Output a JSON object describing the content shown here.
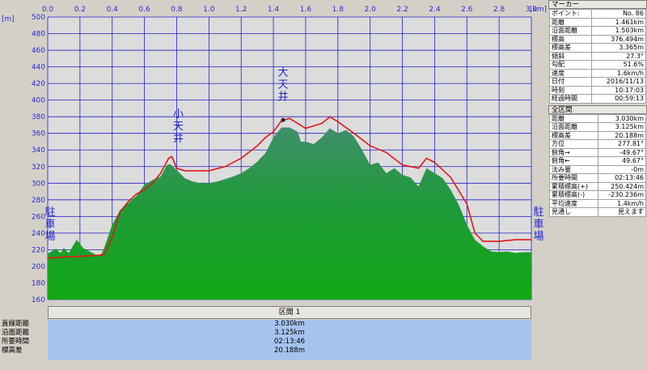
{
  "chart_data": {
    "type": "area",
    "x_unit": "[km]",
    "y_unit": "[m]",
    "xlim": [
      0,
      3.0
    ],
    "ylim": [
      160,
      500
    ],
    "x_ticks": [
      "0.0",
      "0.2",
      "0.4",
      "0.6",
      "0.8",
      "1.0",
      "1.2",
      "1.4",
      "1.6",
      "1.8",
      "2.0",
      "2.2",
      "2.4",
      "2.6",
      "2.8",
      "3.0"
    ],
    "y_ticks": [
      "160",
      "180",
      "200",
      "220",
      "240",
      "260",
      "280",
      "300",
      "320",
      "340",
      "360",
      "380",
      "400",
      "420",
      "440",
      "460",
      "480",
      "500"
    ],
    "grid": true,
    "series": [
      {
        "kind": "elevation-fill",
        "color": "#0f9a1a",
        "points": [
          [
            0,
            215
          ],
          [
            0.05,
            221
          ],
          [
            0.08,
            216
          ],
          [
            0.1,
            222
          ],
          [
            0.13,
            216
          ],
          [
            0.18,
            232
          ],
          [
            0.22,
            222
          ],
          [
            0.26,
            218
          ],
          [
            0.3,
            214
          ],
          [
            0.33,
            214
          ],
          [
            0.35,
            222
          ],
          [
            0.4,
            250
          ],
          [
            0.45,
            268
          ],
          [
            0.5,
            276
          ],
          [
            0.55,
            285
          ],
          [
            0.6,
            298
          ],
          [
            0.65,
            304
          ],
          [
            0.7,
            308
          ],
          [
            0.72,
            315
          ],
          [
            0.74,
            322
          ],
          [
            0.76,
            323
          ],
          [
            0.8,
            316
          ],
          [
            0.85,
            306
          ],
          [
            0.9,
            302
          ],
          [
            0.95,
            300
          ],
          [
            1.0,
            300
          ],
          [
            1.05,
            302
          ],
          [
            1.1,
            305
          ],
          [
            1.15,
            308
          ],
          [
            1.2,
            312
          ],
          [
            1.25,
            318
          ],
          [
            1.3,
            326
          ],
          [
            1.35,
            336
          ],
          [
            1.4,
            355
          ],
          [
            1.42,
            360
          ],
          [
            1.45,
            367
          ],
          [
            1.5,
            367
          ],
          [
            1.55,
            362
          ],
          [
            1.57,
            350
          ],
          [
            1.6,
            350
          ],
          [
            1.65,
            347
          ],
          [
            1.7,
            355
          ],
          [
            1.75,
            366
          ],
          [
            1.8,
            360
          ],
          [
            1.85,
            364
          ],
          [
            1.9,
            356
          ],
          [
            1.95,
            340
          ],
          [
            2.0,
            322
          ],
          [
            2.05,
            325
          ],
          [
            2.1,
            312
          ],
          [
            2.15,
            318
          ],
          [
            2.2,
            310
          ],
          [
            2.25,
            307
          ],
          [
            2.3,
            296
          ],
          [
            2.35,
            318
          ],
          [
            2.4,
            312
          ],
          [
            2.45,
            306
          ],
          [
            2.5,
            292
          ],
          [
            2.55,
            274
          ],
          [
            2.6,
            250
          ],
          [
            2.65,
            232
          ],
          [
            2.7,
            224
          ],
          [
            2.75,
            218
          ],
          [
            2.8,
            217
          ],
          [
            2.85,
            218
          ],
          [
            2.9,
            216
          ],
          [
            2.95,
            217
          ],
          [
            3.0,
            217
          ]
        ]
      },
      {
        "kind": "track-line",
        "color": "#e01818",
        "points": [
          [
            0,
            210
          ],
          [
            0.1,
            211
          ],
          [
            0.2,
            212
          ],
          [
            0.3,
            213
          ],
          [
            0.35,
            214
          ],
          [
            0.4,
            235
          ],
          [
            0.45,
            266
          ],
          [
            0.5,
            278
          ],
          [
            0.55,
            287
          ],
          [
            0.6,
            292
          ],
          [
            0.65,
            300
          ],
          [
            0.7,
            312
          ],
          [
            0.75,
            330
          ],
          [
            0.77,
            332
          ],
          [
            0.8,
            318
          ],
          [
            0.85,
            315
          ],
          [
            0.9,
            315
          ],
          [
            1.0,
            315
          ],
          [
            1.1,
            320
          ],
          [
            1.2,
            330
          ],
          [
            1.3,
            345
          ],
          [
            1.35,
            355
          ],
          [
            1.4,
            362
          ],
          [
            1.45,
            375
          ],
          [
            1.5,
            378
          ],
          [
            1.55,
            372
          ],
          [
            1.6,
            366
          ],
          [
            1.7,
            372
          ],
          [
            1.75,
            380
          ],
          [
            1.8,
            374
          ],
          [
            1.9,
            360
          ],
          [
            2.0,
            345
          ],
          [
            2.1,
            337
          ],
          [
            2.2,
            322
          ],
          [
            2.3,
            318
          ],
          [
            2.35,
            330
          ],
          [
            2.4,
            325
          ],
          [
            2.5,
            307
          ],
          [
            2.6,
            275
          ],
          [
            2.65,
            240
          ],
          [
            2.7,
            230
          ],
          [
            2.8,
            230
          ],
          [
            2.9,
            232
          ],
          [
            3.0,
            232
          ]
        ]
      }
    ],
    "annotations": [
      {
        "text": "小天井",
        "x": 0.81,
        "y": 350
      },
      {
        "text": "大天井",
        "x": 1.46,
        "y": 400
      },
      {
        "text": "駐車場",
        "x": 0.0,
        "y": 232
      },
      {
        "text": "駐車場",
        "x": 3.0,
        "y": 232
      }
    ]
  },
  "section_bar": {
    "label": "区間 1"
  },
  "summary": {
    "labels": [
      "直線距離",
      "沿面距離",
      "所要時間",
      "標高差"
    ],
    "values": [
      "3.030km",
      "3.125km",
      "02:13:46",
      "20.188m"
    ]
  },
  "marker_panel": {
    "title": "マーカー",
    "rows": [
      [
        "ポイント:",
        "No. 86"
      ],
      [
        "距離",
        "1.461km"
      ],
      [
        "沿面距離",
        "1.503km"
      ],
      [
        "標高",
        "376.494m"
      ],
      [
        "標高差",
        "3.365m"
      ],
      [
        "傾斜",
        "27.3°"
      ],
      [
        "勾配",
        "51.6%"
      ],
      [
        "速度",
        "1.6km/h"
      ],
      [
        "日付",
        "2016/11/13"
      ],
      [
        "時刻",
        "10:17:03"
      ],
      [
        "経過時間",
        "00:59:13"
      ]
    ]
  },
  "all_section_panel": {
    "title": "全区間",
    "rows": [
      [
        "距離",
        "3.030km"
      ],
      [
        "沿面距離",
        "3.125km"
      ],
      [
        "標高差",
        "20.188m"
      ],
      [
        "方位",
        "277.81°"
      ],
      [
        "俯角→",
        "-49.67°"
      ],
      [
        "俯角←",
        "49.67°"
      ],
      [
        "沈み量",
        "-0m"
      ],
      [
        "所要時間",
        "02:13:46"
      ],
      [
        "累積標高(+)",
        "250.424m"
      ],
      [
        "累積標高(-)",
        "-230.236m"
      ],
      [
        "平均速度",
        "1.4km/h"
      ],
      [
        "見通し",
        "見えます"
      ]
    ]
  },
  "colors": {
    "plot_bg": "#dcdcdc",
    "grid": "#2020c8",
    "axis_text": "#2b2bd8",
    "summary_bg": "#a6c3ef"
  }
}
